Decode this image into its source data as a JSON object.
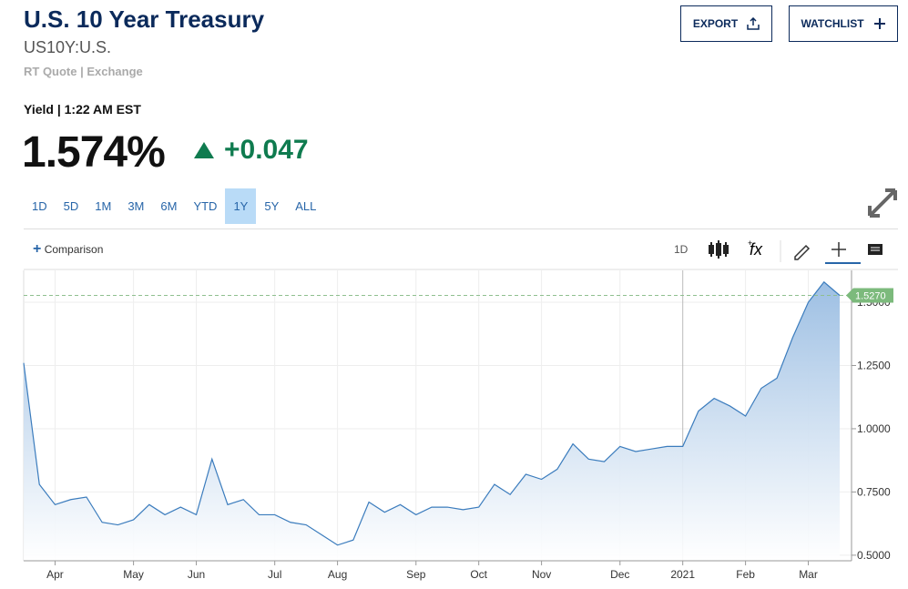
{
  "header": {
    "title": "U.S. 10 Year Treasury",
    "symbol": "US10Y:U.S.",
    "source": "RT Quote | Exchange"
  },
  "buttons": [
    "EXPORT",
    "WATCHLIST"
  ],
  "quote": {
    "label": "Yield | 1:22 AM EST",
    "price": "1.574%",
    "change": "+0.047"
  },
  "timeframes": {
    "items": [
      "1D",
      "5D",
      "1M",
      "3M",
      "6M",
      "YTD",
      "1Y",
      "5Y",
      "ALL"
    ],
    "selected": "1Y"
  },
  "toolbar": {
    "comparison": "Comparison",
    "interval": "1D"
  },
  "chart_data": {
    "type": "area",
    "categories": [
      null,
      null,
      "Apr",
      null,
      null,
      null,
      null,
      "May",
      null,
      null,
      null,
      "Jun",
      null,
      null,
      null,
      null,
      "Jul",
      null,
      null,
      null,
      "Aug",
      null,
      null,
      null,
      null,
      "Sep",
      null,
      null,
      null,
      "Oct",
      null,
      null,
      null,
      "Nov",
      null,
      null,
      null,
      null,
      "Dec",
      null,
      null,
      null,
      "2021",
      null,
      null,
      null,
      "Feb",
      null,
      null,
      null,
      "Mar",
      null,
      null
    ],
    "values": [
      1.26,
      0.78,
      0.7,
      0.72,
      0.73,
      0.63,
      0.62,
      0.64,
      0.7,
      0.66,
      0.69,
      0.66,
      0.88,
      0.7,
      0.72,
      0.66,
      0.66,
      0.63,
      0.62,
      0.58,
      0.54,
      0.56,
      0.71,
      0.67,
      0.7,
      0.66,
      0.69,
      0.69,
      0.68,
      0.69,
      0.78,
      0.74,
      0.82,
      0.8,
      0.84,
      0.94,
      0.88,
      0.87,
      0.93,
      0.91,
      0.92,
      0.93,
      0.93,
      1.07,
      1.12,
      1.09,
      1.05,
      1.16,
      1.2,
      1.36,
      1.5,
      1.58,
      1.527
    ],
    "value_labels": [
      null,
      null,
      null,
      null,
      null,
      null,
      null,
      null,
      null,
      null,
      null,
      null,
      null,
      null,
      null,
      null,
      null,
      null,
      null,
      null,
      null,
      null,
      null,
      null,
      null,
      null,
      null,
      null,
      null,
      null,
      null,
      null,
      null,
      null,
      null,
      null,
      null,
      null,
      null,
      null,
      null,
      null,
      null,
      null,
      null,
      null,
      null,
      null,
      null,
      null,
      null,
      null,
      "1.5270"
    ],
    "color": "#3b7cbd",
    "ylim": [
      0.478,
      1.626
    ],
    "yticks": [
      {
        "value": 0.5,
        "label": "0.5000"
      },
      {
        "value": 0.75,
        "label": "0.7500"
      },
      {
        "value": 1.0,
        "label": "1.0000"
      },
      {
        "value": 1.25,
        "label": "1.2500"
      },
      {
        "value": 1.5,
        "label": "1.5000"
      }
    ],
    "grid": true
  }
}
